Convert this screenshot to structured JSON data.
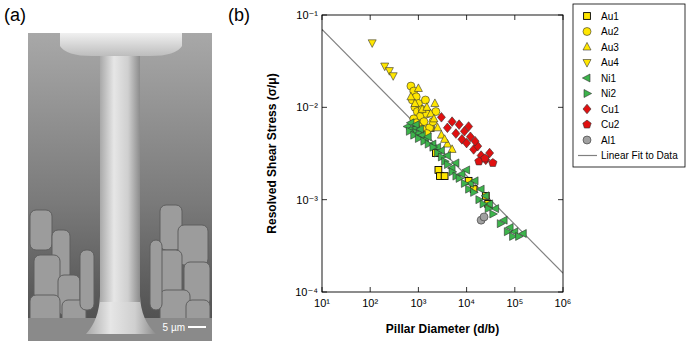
{
  "image_panel": {
    "panel_label": "(a)",
    "scale_bar_label": "5 µm"
  },
  "chart_data": {
    "type": "scatter",
    "panel_label": "(b)",
    "x_label": "Pillar Diameter (d/b)",
    "y_label": "Resolved Shear Stress (σ/μ)",
    "log": true,
    "grid": false,
    "legend": "right",
    "xlim": [
      10,
      1000000
    ],
    "ylim": [
      0.0001,
      0.1
    ],
    "xticks": [
      {
        "value": 10,
        "label": "10¹"
      },
      {
        "value": 100,
        "label": "10²"
      },
      {
        "value": 1000,
        "label": "10³"
      },
      {
        "value": 10000,
        "label": "10⁴"
      },
      {
        "value": 100000,
        "label": "10⁵"
      },
      {
        "value": 1000000,
        "label": "10⁶"
      }
    ],
    "yticks": [
      {
        "value": 0.0001,
        "label": "10⁻⁴"
      },
      {
        "value": 0.001,
        "label": "10⁻³"
      },
      {
        "value": 0.01,
        "label": "10⁻²"
      },
      {
        "value": 0.1,
        "label": "10⁻¹"
      }
    ],
    "series": [
      {
        "name": "Au1",
        "color": "#ffe600",
        "marker": "square",
        "x": [
          1800,
          2300,
          2600,
          2800,
          3500,
          11000,
          14000,
          25000,
          28000
        ],
        "values": [
          0.006,
          0.0032,
          0.0021,
          0.0018,
          0.0018,
          0.0016,
          0.0013,
          0.0011,
          0.0009
        ]
      },
      {
        "name": "Au2",
        "color": "#ffe600",
        "marker": "circle",
        "x": [
          700,
          750,
          800,
          850,
          900,
          950,
          1000,
          1100,
          1200,
          1300,
          1400,
          1500,
          1700,
          2000,
          2300,
          800,
          900,
          1000,
          1200,
          1500
        ],
        "values": [
          0.017,
          0.012,
          0.015,
          0.01,
          0.013,
          0.009,
          0.011,
          0.008,
          0.0095,
          0.007,
          0.012,
          0.0085,
          0.006,
          0.007,
          0.009,
          0.0075,
          0.0068,
          0.0062,
          0.0058,
          0.0052
        ]
      },
      {
        "name": "Au3",
        "color": "#ffe600",
        "marker": "triangle-up",
        "x": [
          700,
          850,
          1000,
          1200,
          1500,
          1800,
          2100,
          2500,
          3000,
          4000,
          5000,
          2200,
          3500
        ],
        "values": [
          0.013,
          0.011,
          0.016,
          0.0095,
          0.01,
          0.0085,
          0.0075,
          0.006,
          0.005,
          0.004,
          0.0035,
          0.011,
          0.0045
        ]
      },
      {
        "name": "Au4",
        "color": "#ffe600",
        "marker": "triangle-down",
        "x": [
          110,
          200,
          250,
          300
        ],
        "values": [
          0.05,
          0.028,
          0.025,
          0.022
        ]
      },
      {
        "name": "Ni1",
        "color": "#3cb44b",
        "marker": "triangle-left",
        "x": [
          600,
          700,
          800,
          900,
          1000,
          1200,
          1400,
          1600,
          2000,
          2500,
          3000,
          4000,
          5000,
          6000,
          8000,
          10000,
          12000,
          15000,
          20000,
          25000,
          30000,
          40000,
          60000,
          80000,
          100000,
          150000,
          700,
          900,
          1100
        ],
        "values": [
          0.0062,
          0.0058,
          0.0055,
          0.006,
          0.0052,
          0.005,
          0.0045,
          0.0048,
          0.004,
          0.0037,
          0.0034,
          0.003,
          0.0022,
          0.0025,
          0.0019,
          0.0021,
          0.0015,
          0.0016,
          0.0013,
          0.0011,
          0.0009,
          0.0008,
          0.0006,
          0.0005,
          0.00045,
          0.00043,
          0.0068,
          0.0065,
          0.0058
        ]
      },
      {
        "name": "Ni2",
        "color": "#3cb44b",
        "marker": "triangle-right",
        "x": [
          650,
          800,
          1000,
          1300,
          1600,
          2000,
          2500,
          3000,
          3500,
          4000,
          5000,
          6000,
          7000,
          9000,
          11000,
          14000,
          18000,
          22000,
          28000,
          35000,
          50000,
          70000,
          90000,
          120000
        ],
        "values": [
          0.0055,
          0.005,
          0.0046,
          0.0043,
          0.004,
          0.0037,
          0.0032,
          0.0029,
          0.0026,
          0.0024,
          0.002,
          0.0018,
          0.0017,
          0.0015,
          0.0013,
          0.0012,
          0.001,
          0.0009,
          0.0008,
          0.0007,
          0.00055,
          0.00045,
          0.0004,
          0.0004
        ]
      },
      {
        "name": "Cu1",
        "color": "#e01010",
        "marker": "diamond",
        "x": [
          3000,
          4000,
          5000,
          6000,
          7000,
          8000,
          9000,
          10000,
          12000,
          14000,
          17000,
          20000,
          25000,
          30000,
          11000,
          15000
        ],
        "values": [
          0.0078,
          0.006,
          0.007,
          0.0052,
          0.0065,
          0.0045,
          0.0055,
          0.0041,
          0.0048,
          0.0035,
          0.0038,
          0.003,
          0.0027,
          0.0032,
          0.0062,
          0.0043
        ]
      },
      {
        "name": "Cu2",
        "color": "#e01010",
        "marker": "pentagon",
        "x": [
          18000,
          24000,
          35000
        ],
        "values": [
          0.0026,
          0.0028,
          0.0025
        ]
      },
      {
        "name": "Al1",
        "color": "#a0a0a0",
        "marker": "circle",
        "x": [
          20000,
          23000
        ],
        "values": [
          0.0006,
          0.00065
        ]
      },
      {
        "name": "Linear Fit to Data",
        "color": "#808080",
        "type": "line",
        "line_style": "solid",
        "x": [
          10,
          1000000
        ],
        "values": [
          0.07,
          0.00016
        ]
      }
    ]
  }
}
